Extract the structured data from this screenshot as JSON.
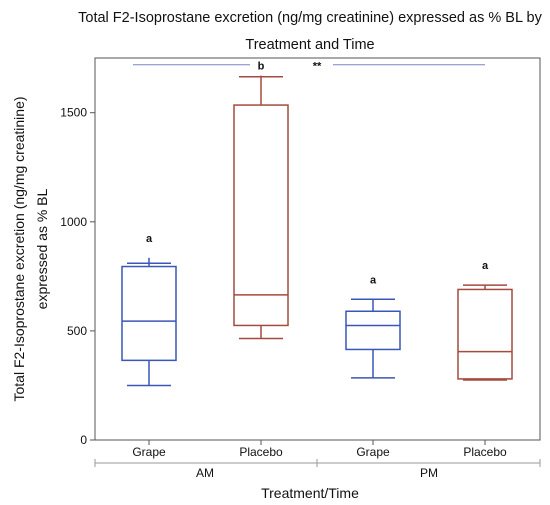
{
  "chart_data": {
    "type": "box",
    "title_line1": "Total F2-Isoprostane excretion (ng/mg creatinine) expressed as % BL by",
    "title_line2": "Treatment and Time",
    "xlabel": "Treatment/Time",
    "ylabel_line1": "Total F2-Isoprostane excretion (ng/mg creatinine)",
    "ylabel_line2": "expressed as % BL",
    "ylim": [
      0,
      1800
    ],
    "yticks": [
      0,
      500,
      1000,
      1500
    ],
    "groups": [
      {
        "label": "AM",
        "categories": [
          0,
          1
        ]
      },
      {
        "label": "PM",
        "categories": [
          2,
          3
        ]
      }
    ],
    "boxes": [
      {
        "category": "Grape",
        "time": "AM",
        "min": 250,
        "q1": 365,
        "median": 545,
        "q3": 795,
        "max": 835,
        "cap": 810,
        "color": "#3a56b8",
        "letter": "a"
      },
      {
        "category": "Placebo",
        "time": "AM",
        "min": 465,
        "q1": 525,
        "median": 665,
        "q3": 1535,
        "max": 1670,
        "cap": 1665,
        "color": "#a44a3f",
        "letter": "b"
      },
      {
        "category": "Grape",
        "time": "PM",
        "min": 285,
        "q1": 415,
        "median": 525,
        "q3": 590,
        "max": 645,
        "cap": 645,
        "color": "#3a56b8",
        "letter": "a"
      },
      {
        "category": "Placebo",
        "time": "PM",
        "min": 275,
        "q1": 280,
        "median": 405,
        "q3": 690,
        "max": 710,
        "cap": 710,
        "color": "#a44a3f",
        "letter": "a"
      }
    ],
    "significance": {
      "label": "**",
      "y": 1720
    },
    "grid": false
  }
}
